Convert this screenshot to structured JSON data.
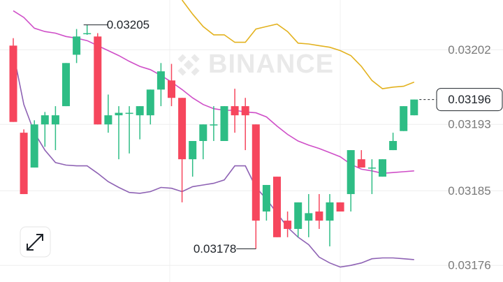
{
  "chart_data": {
    "type": "candlestick",
    "watermark": "BINANCE",
    "open": [
      0.032025,
      0.03192,
      0.031878,
      0.03193,
      0.03193,
      0.031952,
      0.032014,
      0.03204,
      0.032036,
      0.03193,
      0.031941,
      0.031944,
      0.031941,
      0.031941,
      0.031972,
      0.031983,
      0.031962,
      0.031888,
      0.03191,
      0.03193,
      0.03191,
      0.031952,
      0.031952,
      0.03193,
      0.031825,
      0.031867,
      0.031814,
      0.031804,
      0.031814,
      0.031825,
      0.031814,
      0.031836,
      0.031846,
      0.031888,
      0.031878,
      0.031867,
      0.031899,
      0.031922,
      0.031941
    ],
    "high": [
      0.032034,
      0.031924,
      0.031935,
      0.031945,
      0.031952,
      0.032004,
      0.032045,
      0.03205,
      0.03204,
      0.031966,
      0.031952,
      0.031952,
      0.031952,
      0.031972,
      0.032004,
      0.032003,
      0.031962,
      0.03191,
      0.03193,
      0.031952,
      0.031952,
      0.031973,
      0.031962,
      0.03193,
      0.031857,
      0.031867,
      0.031825,
      0.031836,
      0.031846,
      0.031846,
      0.031846,
      0.031836,
      0.031899,
      0.031899,
      0.031888,
      0.031888,
      0.03192,
      0.031952,
      0.03196
    ],
    "low": [
      0.031933,
      0.031846,
      0.031878,
      0.031903,
      0.031899,
      0.031952,
      0.032004,
      0.032038,
      0.03193,
      0.03192,
      0.031888,
      0.031895,
      0.031912,
      0.03193,
      0.031952,
      0.031952,
      0.031836,
      0.031867,
      0.031888,
      0.03191,
      0.03191,
      0.03192,
      0.031899,
      0.03178,
      0.031814,
      0.031794,
      0.031794,
      0.031794,
      0.031794,
      0.031804,
      0.031783,
      0.031825,
      0.031825,
      0.031878,
      0.031846,
      0.031867,
      0.031899,
      0.031922,
      0.031941
    ],
    "close": [
      0.031933,
      0.031846,
      0.03193,
      0.031941,
      0.031941,
      0.032004,
      0.032036,
      0.03204,
      0.03193,
      0.031941,
      0.031944,
      0.031944,
      0.031952,
      0.031972,
      0.031994,
      0.031962,
      0.031888,
      0.03191,
      0.03193,
      0.03193,
      0.031952,
      0.031941,
      0.031941,
      0.031814,
      0.031857,
      0.031794,
      0.031804,
      0.031836,
      0.031823,
      0.031814,
      0.031836,
      0.031825,
      0.031899,
      0.031878,
      0.031878,
      0.031888,
      0.03191,
      0.031952,
      0.03196
    ],
    "up_color": "#2ebd85",
    "down_color": "#f6465d",
    "bands": [
      {
        "color": "#e3b21f",
        "values": [
          null,
          null,
          null,
          null,
          null,
          null,
          null,
          null,
          null,
          null,
          null,
          null,
          null,
          null,
          null,
          null,
          0.03208,
          0.032063,
          0.032048,
          0.032038,
          0.032038,
          0.032029,
          0.032029,
          0.032045,
          0.032048,
          0.032051,
          0.032042,
          0.032028,
          0.032027,
          0.032025,
          0.032023,
          0.032019,
          0.032013,
          0.032,
          0.031983,
          0.031973,
          0.031975,
          0.031976,
          0.031981
        ]
      },
      {
        "color": "#cf4fc8",
        "values": [
          0.032067,
          0.032059,
          0.032046,
          0.032042,
          0.03204,
          0.032036,
          0.032034,
          0.032031,
          0.032025,
          0.032019,
          0.032013,
          0.032006,
          0.032,
          0.031996,
          0.031989,
          0.031981,
          0.031972,
          0.031962,
          0.031954,
          0.031949,
          0.031947,
          0.031947,
          0.031945,
          0.031944,
          0.031939,
          0.031928,
          0.031918,
          0.03191,
          0.031905,
          0.031901,
          0.031896,
          0.031891,
          0.031882,
          0.031876,
          0.031874,
          0.031871,
          0.031872,
          0.031873,
          0.031874
        ]
      },
      {
        "color": "#8e62b4",
        "values": [
          0.032017,
          0.031954,
          0.03192,
          0.031899,
          0.031884,
          0.031881,
          0.03188,
          0.03188,
          0.031871,
          0.031861,
          0.031854,
          0.031848,
          0.031847,
          0.031849,
          0.031854,
          0.031853,
          0.031849,
          0.031855,
          0.031857,
          0.031859,
          0.031863,
          0.03188,
          0.03188,
          0.031854,
          0.03184,
          0.031823,
          0.031806,
          0.031794,
          0.031785,
          0.03177,
          0.031763,
          0.031758,
          0.03176,
          0.031763,
          0.031768,
          0.031769,
          0.031769,
          0.031768,
          0.031767
        ]
      }
    ],
    "annotations": [
      0.03205,
      0.03178
    ],
    "last_price": 0.03196,
    "ylim": [
      0.03174,
      0.03208
    ],
    "yticks": [
      0.03202,
      0.03193,
      0.03185,
      0.03176
    ],
    "grid": true
  }
}
